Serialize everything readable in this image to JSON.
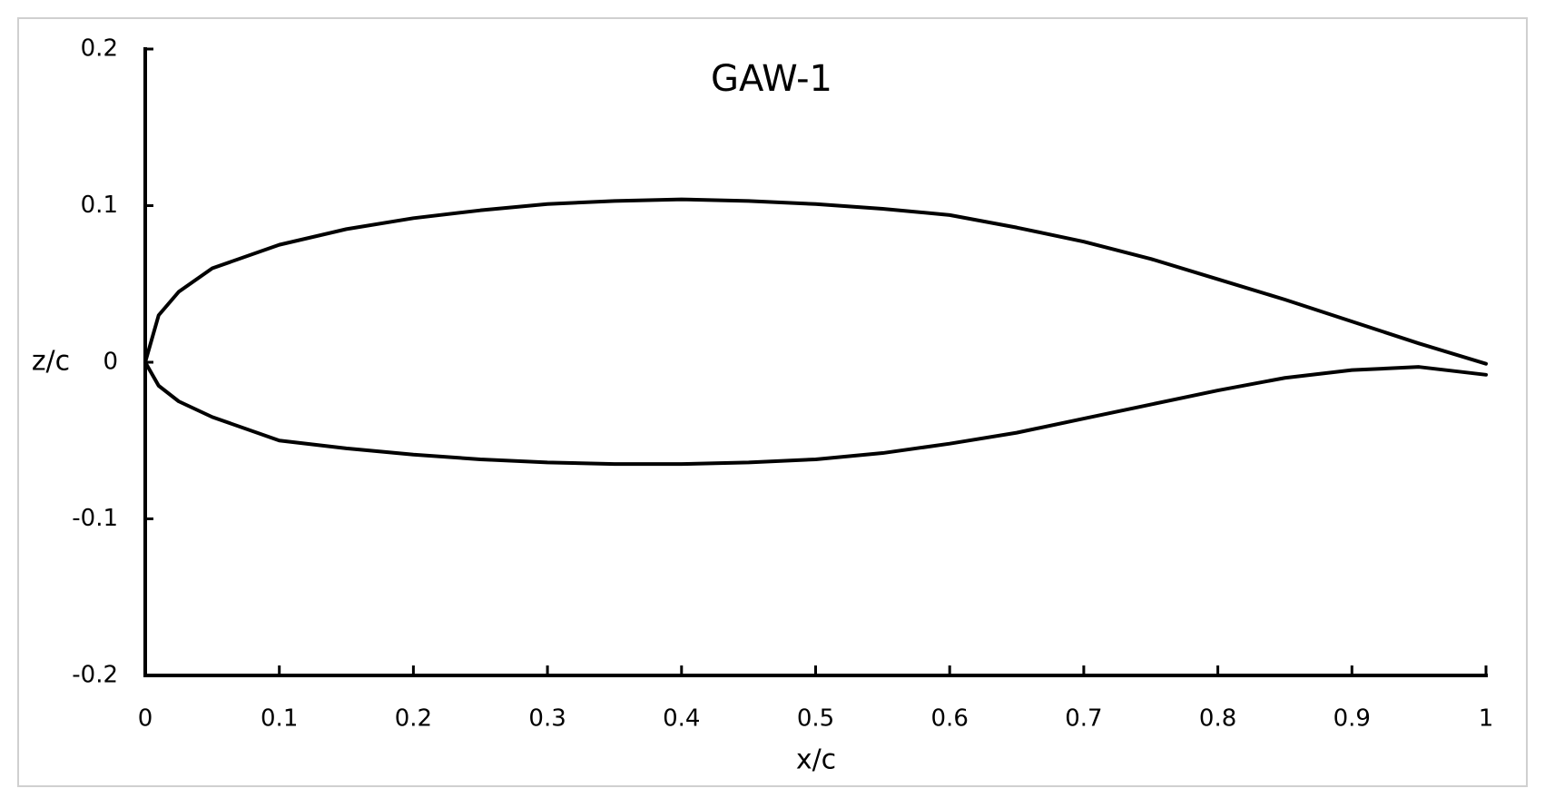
{
  "chart_data": {
    "type": "line",
    "title": "GAW-1",
    "x_label": "x/c",
    "y_label": "z/c",
    "x": [
      0,
      0.01,
      0.025,
      0.05,
      0.1,
      0.15,
      0.2,
      0.25,
      0.3,
      0.35,
      0.4,
      0.45,
      0.5,
      0.55,
      0.6,
      0.65,
      0.7,
      0.75,
      0.8,
      0.85,
      0.9,
      0.95,
      1
    ],
    "series": [
      {
        "color": "#000000",
        "values": [
          0,
          0.03,
          0.045,
          0.06,
          0.075,
          0.085,
          0.092,
          0.097,
          0.101,
          0.103,
          0.104,
          0.103,
          0.101,
          0.098,
          0.094,
          0.086,
          0.077,
          0.066,
          0.053,
          0.04,
          0.026,
          0.012,
          -0.001
        ]
      },
      {
        "color": "#000000",
        "values": [
          0,
          -0.015,
          -0.025,
          -0.035,
          -0.05,
          -0.055,
          -0.059,
          -0.062,
          -0.064,
          -0.065,
          -0.065,
          -0.064,
          -0.062,
          -0.058,
          -0.052,
          -0.045,
          -0.036,
          -0.027,
          -0.018,
          -0.01,
          -0.005,
          -0.003,
          -0.008
        ]
      }
    ],
    "xlim": [
      0,
      1
    ],
    "xticks": [
      0,
      0.1,
      0.2,
      0.3,
      0.4,
      0.5,
      0.6,
      0.7,
      0.8,
      0.9,
      1
    ],
    "ylim": [
      -0.2,
      0.2
    ],
    "yticks": [
      -0.2,
      -0.1,
      0,
      0.1,
      0.2
    ],
    "grid": false
  }
}
